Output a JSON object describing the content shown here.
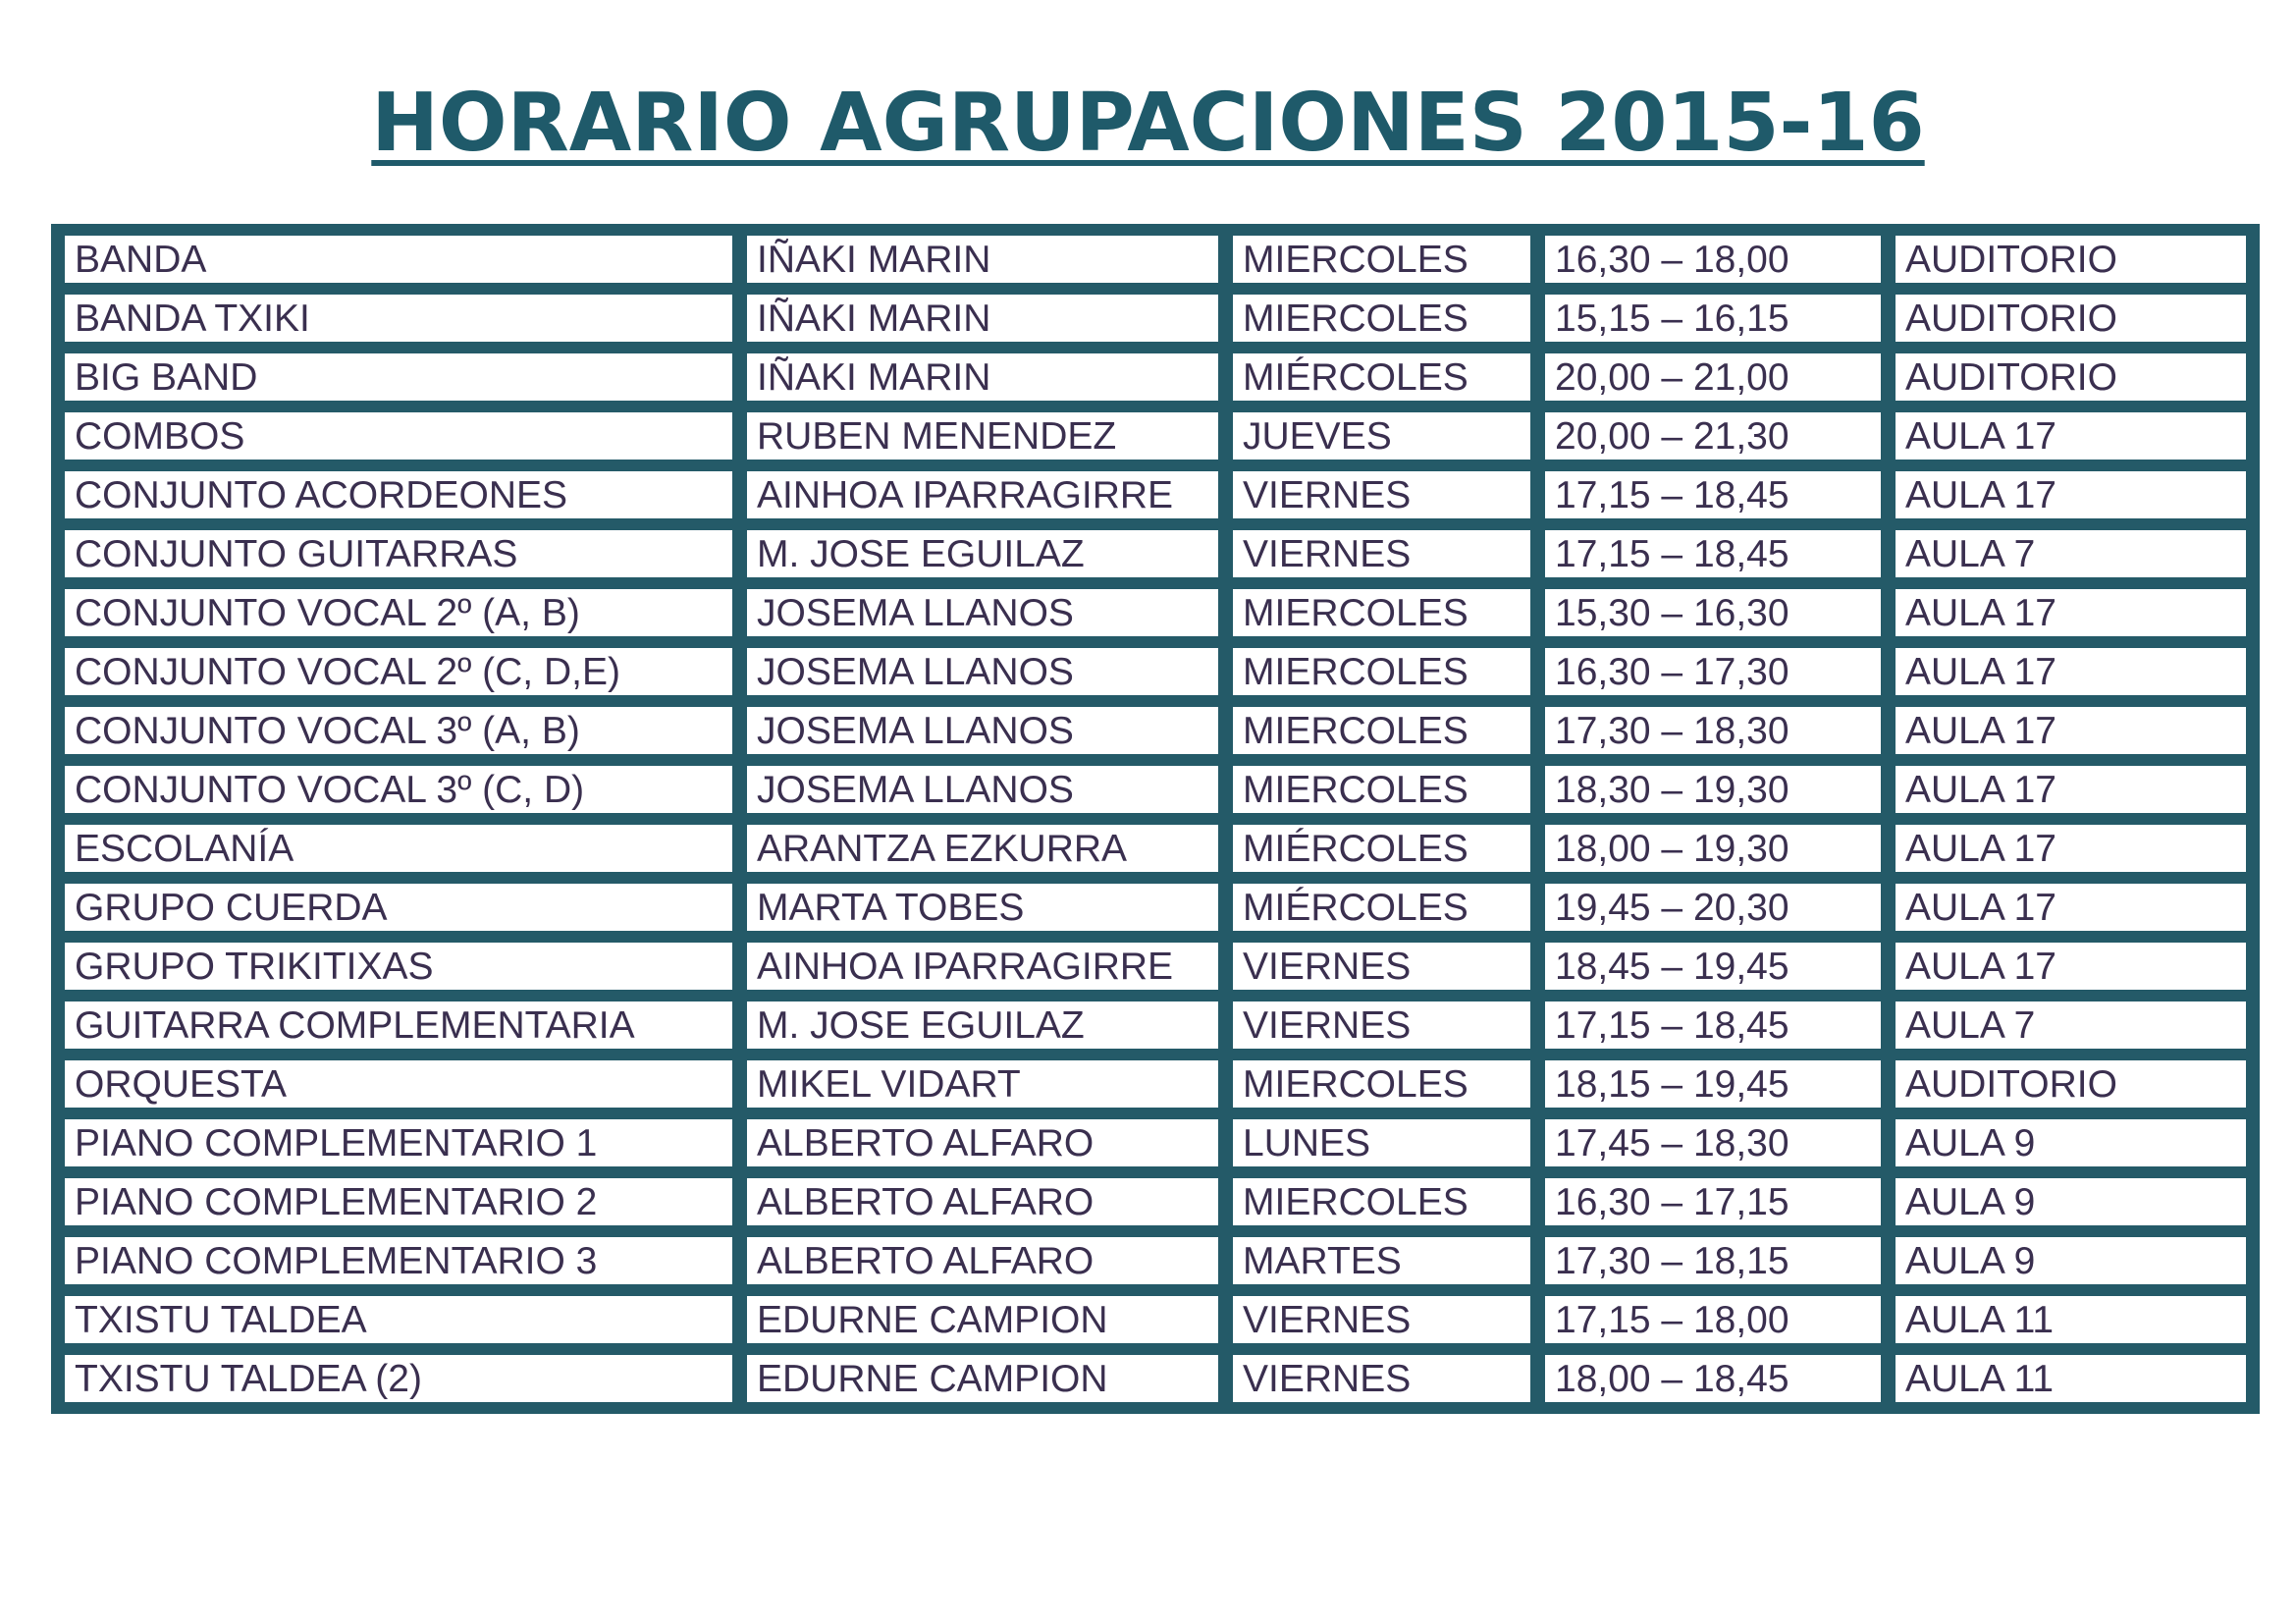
{
  "title": "HORARIO AGRUPACIONES 2015-16",
  "colors": {
    "title": "#1f5a6a",
    "table_border": "#245a68",
    "text": "#3a2f4f"
  },
  "rows": [
    [
      "BANDA",
      "IÑAKI MARIN",
      "MIERCOLES",
      "16,30 – 18,00",
      "AUDITORIO"
    ],
    [
      "BANDA TXIKI",
      "IÑAKI MARIN",
      "MIERCOLES",
      "15,15 – 16,15",
      "AUDITORIO"
    ],
    [
      "BIG BAND",
      "IÑAKI MARIN",
      "MIÉRCOLES",
      "20,00 – 21,00",
      "AUDITORIO"
    ],
    [
      "COMBOS",
      "RUBEN MENENDEZ",
      "JUEVES",
      "20,00 – 21,30",
      "AULA 17"
    ],
    [
      "CONJUNTO ACORDEONES",
      "AINHOA IPARRAGIRRE",
      "VIERNES",
      "17,15 – 18,45",
      "AULA 17"
    ],
    [
      "CONJUNTO GUITARRAS",
      "M. JOSE EGUILAZ",
      "VIERNES",
      "17,15 – 18,45",
      "AULA 7"
    ],
    [
      "CONJUNTO VOCAL 2º (A, B)",
      "JOSEMA LLANOS",
      "MIERCOLES",
      "15,30 – 16,30",
      "AULA 17"
    ],
    [
      "CONJUNTO VOCAL 2º (C, D,E)",
      "JOSEMA LLANOS",
      "MIERCOLES",
      "16,30 – 17,30",
      "AULA 17"
    ],
    [
      "CONJUNTO VOCAL 3º (A, B)",
      "JOSEMA LLANOS",
      "MIERCOLES",
      "17,30 – 18,30",
      "AULA 17"
    ],
    [
      "CONJUNTO VOCAL 3º (C, D)",
      "JOSEMA LLANOS",
      "MIERCOLES",
      "18,30 – 19,30",
      "AULA 17"
    ],
    [
      "ESCOLANÍA",
      "ARANTZA EZKURRA",
      "MIÉRCOLES",
      "18,00 – 19,30",
      "AULA 17"
    ],
    [
      "GRUPO CUERDA",
      "MARTA TOBES",
      "MIÉRCOLES",
      "19,45 – 20,30",
      "AULA 17"
    ],
    [
      "GRUPO TRIKITIXAS",
      "AINHOA IPARRAGIRRE",
      "VIERNES",
      "18,45 – 19,45",
      "AULA 17"
    ],
    [
      "GUITARRA COMPLEMENTARIA",
      "M. JOSE EGUILAZ",
      "VIERNES",
      "17,15 – 18,45",
      "AULA 7"
    ],
    [
      "ORQUESTA",
      "MIKEL VIDART",
      "MIERCOLES",
      "18,15 – 19,45",
      "AUDITORIO"
    ],
    [
      "PIANO COMPLEMENTARIO 1",
      "ALBERTO ALFARO",
      "LUNES",
      "17,45 – 18,30",
      "AULA 9"
    ],
    [
      "PIANO COMPLEMENTARIO 2",
      "ALBERTO ALFARO",
      "MIERCOLES",
      "16,30 – 17,15",
      "AULA 9"
    ],
    [
      "PIANO COMPLEMENTARIO 3",
      "ALBERTO ALFARO",
      "MARTES",
      "17,30 – 18,15",
      "AULA 9"
    ],
    [
      "TXISTU TALDEA",
      "EDURNE CAMPION",
      "VIERNES",
      "17,15 – 18,00",
      "AULA 11"
    ],
    [
      "TXISTU TALDEA (2)",
      "EDURNE CAMPION",
      "VIERNES",
      "18,00 – 18,45",
      "AULA 11"
    ]
  ]
}
